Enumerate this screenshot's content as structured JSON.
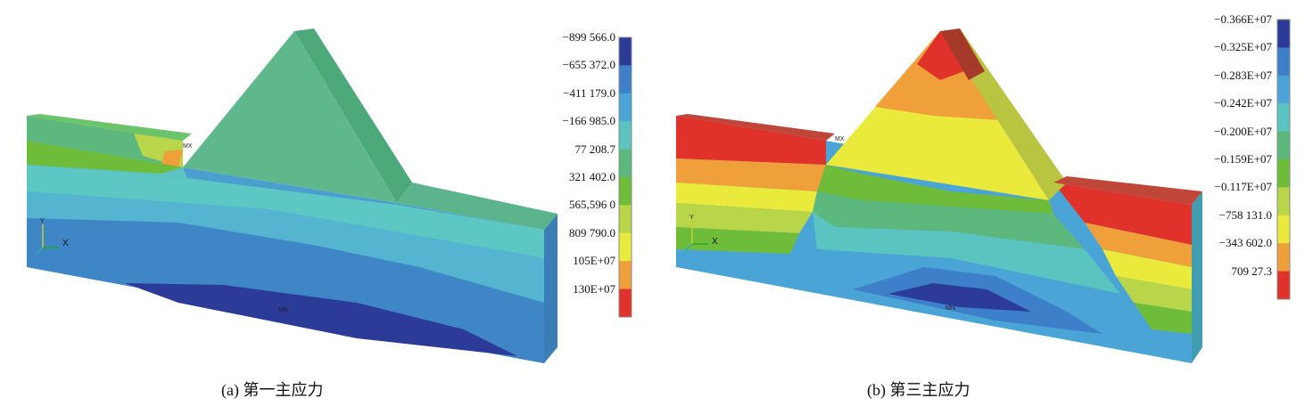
{
  "panel_a": {
    "caption": "(a) 第一主应力",
    "legend": [
      "−899 566.0",
      "−655 372.0",
      "−411 179.0",
      "−166 985.0",
      "77 208.7",
      "321 402.0",
      "565,596 0",
      "809 790.0",
      "105E+07",
      "130E+07"
    ],
    "colors": [
      "#2c3a98",
      "#3d7fc9",
      "#4aa5d6",
      "#5bc4c1",
      "#5db87d",
      "#6fbc3a",
      "#b9d54a",
      "#eaea3c",
      "#f0a03a",
      "#e0322a"
    ],
    "mx_label": "MX",
    "mn_label": "MN",
    "axis_x": "X",
    "axis_y": "Y"
  },
  "panel_b": {
    "caption": "(b) 第三主应力",
    "legend": [
      "−0.366E+07",
      "−0.325E+07",
      "−0.283E+07",
      "−0.242E+07",
      "−0.200E+07",
      "−0.159E+07",
      "−0.117E+07",
      "−758 131.0",
      "−343 602.0",
      "709 27.3"
    ],
    "colors": [
      "#2c3a98",
      "#3d7fc9",
      "#4aa5d6",
      "#5bc4c1",
      "#5db87d",
      "#6fbc3a",
      "#b9d54a",
      "#eaea3c",
      "#f0a03a",
      "#e0322a"
    ],
    "mx_label": "MX",
    "mn_label": "MN",
    "axis_x": "X",
    "axis_y": "Y"
  }
}
